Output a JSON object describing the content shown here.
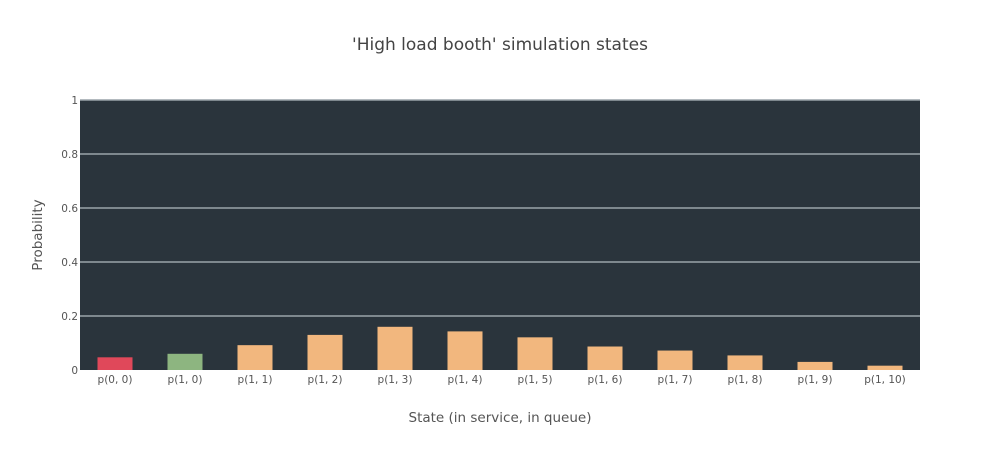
{
  "chart_data": {
    "type": "bar",
    "title": "'High load booth' simulation states",
    "xlabel": "State (in service, in queue)",
    "ylabel": "Probability",
    "categories": [
      "p(0, 0)",
      "p(1, 0)",
      "p(1, 1)",
      "p(1, 2)",
      "p(1, 3)",
      "p(1, 4)",
      "p(1, 5)",
      "p(1, 6)",
      "p(1, 7)",
      "p(1, 8)",
      "p(1, 9)",
      "p(1, 10)"
    ],
    "values": [
      0.047,
      0.06,
      0.092,
      0.13,
      0.16,
      0.143,
      0.121,
      0.087,
      0.072,
      0.054,
      0.03,
      0.016
    ],
    "bar_colors": [
      "#e0485a",
      "#8db580",
      "#f2b77e",
      "#f2b77e",
      "#f2b77e",
      "#f2b77e",
      "#f2b77e",
      "#f2b77e",
      "#f2b77e",
      "#f2b77e",
      "#f2b77e",
      "#f2b77e"
    ],
    "ylim": [
      0,
      1
    ],
    "yticks": [
      0,
      0.2,
      0.4,
      0.6,
      0.8,
      1
    ],
    "ytick_labels": [
      "0",
      "0.2",
      "0.4",
      "0.6",
      "0.8",
      "1"
    ],
    "grid": true,
    "legend": false,
    "plot_background": "#2a343c",
    "grid_color": "#9aa4aa"
  }
}
